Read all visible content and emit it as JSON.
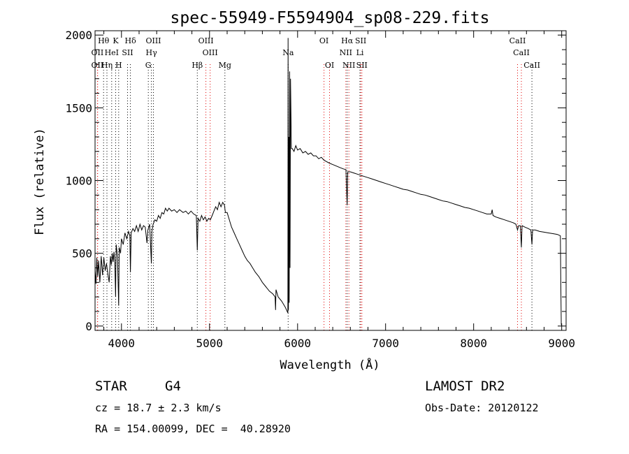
{
  "chart_data": {
    "type": "line",
    "title": "spec-55949-F5594904_sp08-229.fits",
    "xlabel": "Wavelength (Å)",
    "ylabel": "Flux (relative)",
    "xlim": [
      3700,
      9050
    ],
    "ylim": [
      -30,
      2030
    ],
    "x_ticks": [
      "4000",
      "5000",
      "6000",
      "7000",
      "8000",
      "9000"
    ],
    "y_ticks": [
      "0",
      "500",
      "1000",
      "1500",
      "2000"
    ],
    "grid": false,
    "series": [
      {
        "points": [
          [
            3700,
            380
          ],
          [
            3710,
            290
          ],
          [
            3720,
            470
          ],
          [
            3730,
            340
          ],
          [
            3740,
            450
          ],
          [
            3755,
            300
          ],
          [
            3770,
            480
          ],
          [
            3785,
            350
          ],
          [
            3800,
            470
          ],
          [
            3815,
            380
          ],
          [
            3830,
            430
          ],
          [
            3845,
            360
          ],
          [
            3860,
            300
          ],
          [
            3875,
            480
          ],
          [
            3885,
            420
          ],
          [
            3895,
            500
          ],
          [
            3905,
            440
          ],
          [
            3915,
            510
          ],
          [
            3925,
            440
          ],
          [
            3933,
            200
          ],
          [
            3940,
            560
          ],
          [
            3955,
            480
          ],
          [
            3968,
            140
          ],
          [
            3975,
            540
          ],
          [
            3990,
            500
          ],
          [
            4000,
            600
          ],
          [
            4020,
            560
          ],
          [
            4040,
            640
          ],
          [
            4060,
            600
          ],
          [
            4080,
            650
          ],
          [
            4095,
            620
          ],
          [
            4102,
            370
          ],
          [
            4110,
            640
          ],
          [
            4130,
            670
          ],
          [
            4150,
            650
          ],
          [
            4170,
            690
          ],
          [
            4190,
            650
          ],
          [
            4210,
            700
          ],
          [
            4230,
            660
          ],
          [
            4250,
            690
          ],
          [
            4270,
            680
          ],
          [
            4290,
            570
          ],
          [
            4300,
            660
          ],
          [
            4320,
            700
          ],
          [
            4340,
            430
          ],
          [
            4345,
            650
          ],
          [
            4360,
            700
          ],
          [
            4380,
            730
          ],
          [
            4400,
            720
          ],
          [
            4420,
            760
          ],
          [
            4440,
            740
          ],
          [
            4460,
            780
          ],
          [
            4480,
            770
          ],
          [
            4500,
            810
          ],
          [
            4520,
            790
          ],
          [
            4540,
            810
          ],
          [
            4570,
            790
          ],
          [
            4600,
            800
          ],
          [
            4630,
            780
          ],
          [
            4660,
            800
          ],
          [
            4700,
            780
          ],
          [
            4730,
            790
          ],
          [
            4760,
            770
          ],
          [
            4790,
            790
          ],
          [
            4820,
            770
          ],
          [
            4850,
            760
          ],
          [
            4861,
            520
          ],
          [
            4870,
            740
          ],
          [
            4890,
            720
          ],
          [
            4910,
            760
          ],
          [
            4930,
            730
          ],
          [
            4950,
            750
          ],
          [
            4970,
            720
          ],
          [
            4990,
            740
          ],
          [
            5010,
            730
          ],
          [
            5030,
            760
          ],
          [
            5050,
            790
          ],
          [
            5070,
            820
          ],
          [
            5090,
            800
          ],
          [
            5110,
            850
          ],
          [
            5130,
            820
          ],
          [
            5150,
            850
          ],
          [
            5170,
            830
          ],
          [
            5180,
            780
          ],
          [
            5200,
            780
          ],
          [
            5220,
            740
          ],
          [
            5250,
            680
          ],
          [
            5280,
            640
          ],
          [
            5310,
            600
          ],
          [
            5340,
            560
          ],
          [
            5370,
            520
          ],
          [
            5400,
            480
          ],
          [
            5430,
            450
          ],
          [
            5460,
            430
          ],
          [
            5490,
            400
          ],
          [
            5520,
            370
          ],
          [
            5560,
            340
          ],
          [
            5600,
            300
          ],
          [
            5640,
            270
          ],
          [
            5680,
            240
          ],
          [
            5720,
            220
          ],
          [
            5745,
            200
          ],
          [
            5750,
            110
          ],
          [
            5755,
            250
          ],
          [
            5780,
            200
          ],
          [
            5820,
            170
          ],
          [
            5860,
            130
          ],
          [
            5890,
            90
          ],
          [
            5892,
            1980
          ],
          [
            5896,
            110
          ],
          [
            5900,
            1300
          ],
          [
            5905,
            160
          ],
          [
            5910,
            1750
          ],
          [
            5915,
            400
          ],
          [
            5920,
            1700
          ],
          [
            5930,
            1220
          ],
          [
            5940,
            1220
          ],
          [
            5960,
            1200
          ],
          [
            5980,
            1240
          ],
          [
            6000,
            1210
          ],
          [
            6030,
            1220
          ],
          [
            6060,
            1190
          ],
          [
            6090,
            1200
          ],
          [
            6120,
            1180
          ],
          [
            6150,
            1190
          ],
          [
            6180,
            1170
          ],
          [
            6210,
            1170
          ],
          [
            6240,
            1150
          ],
          [
            6270,
            1160
          ],
          [
            6300,
            1140
          ],
          [
            6330,
            1130
          ],
          [
            6360,
            1120
          ],
          [
            6400,
            1110
          ],
          [
            6440,
            1100
          ],
          [
            6480,
            1090
          ],
          [
            6520,
            1080
          ],
          [
            6550,
            1075
          ],
          [
            6563,
            830
          ],
          [
            6570,
            1060
          ],
          [
            6600,
            1060
          ],
          [
            6650,
            1050
          ],
          [
            6700,
            1040
          ],
          [
            6750,
            1030
          ],
          [
            6800,
            1020
          ],
          [
            6850,
            1010
          ],
          [
            6900,
            1000
          ],
          [
            6950,
            990
          ],
          [
            7000,
            980
          ],
          [
            7050,
            970
          ],
          [
            7100,
            960
          ],
          [
            7150,
            950
          ],
          [
            7200,
            940
          ],
          [
            7250,
            935
          ],
          [
            7300,
            925
          ],
          [
            7350,
            915
          ],
          [
            7400,
            905
          ],
          [
            7450,
            900
          ],
          [
            7500,
            890
          ],
          [
            7550,
            880
          ],
          [
            7600,
            870
          ],
          [
            7650,
            860
          ],
          [
            7700,
            855
          ],
          [
            7750,
            845
          ],
          [
            7800,
            835
          ],
          [
            7850,
            825
          ],
          [
            7900,
            815
          ],
          [
            7950,
            810
          ],
          [
            8000,
            800
          ],
          [
            8050,
            790
          ],
          [
            8100,
            780
          ],
          [
            8150,
            770
          ],
          [
            8200,
            770
          ],
          [
            8210,
            800
          ],
          [
            8220,
            760
          ],
          [
            8250,
            750
          ],
          [
            8300,
            740
          ],
          [
            8350,
            730
          ],
          [
            8400,
            720
          ],
          [
            8450,
            710
          ],
          [
            8480,
            700
          ],
          [
            8498,
            660
          ],
          [
            8510,
            690
          ],
          [
            8530,
            690
          ],
          [
            8542,
            540
          ],
          [
            8550,
            690
          ],
          [
            8580,
            680
          ],
          [
            8620,
            670
          ],
          [
            8650,
            660
          ],
          [
            8662,
            560
          ],
          [
            8670,
            660
          ],
          [
            8700,
            660
          ],
          [
            8750,
            650
          ],
          [
            8800,
            645
          ],
          [
            8850,
            640
          ],
          [
            8900,
            635
          ],
          [
            8950,
            630
          ],
          [
            8985,
            620
          ],
          [
            8990,
            300
          ],
          [
            8995,
            10
          ],
          [
            9000,
            5
          ]
        ]
      }
    ],
    "line_labels": [
      {
        "text": "Hθ",
        "x": 3797,
        "row": 1
      },
      {
        "text": "K",
        "x": 3934,
        "row": 1
      },
      {
        "text": "Hδ",
        "x": 4102,
        "row": 1
      },
      {
        "text": "OIII",
        "x": 4363,
        "row": 1
      },
      {
        "text": "OIII",
        "x": 4959,
        "row": 1
      },
      {
        "text": "OI",
        "x": 6300,
        "row": 1
      },
      {
        "text": "Hα",
        "x": 6563,
        "row": 1
      },
      {
        "text": "SII",
        "x": 6717,
        "row": 1
      },
      {
        "text": "CaII",
        "x": 8498,
        "row": 1
      },
      {
        "text": "OII",
        "x": 3727,
        "row": 2
      },
      {
        "text": "HeI",
        "x": 3889,
        "row": 2
      },
      {
        "text": "SII",
        "x": 4069,
        "row": 2
      },
      {
        "text": "Hγ",
        "x": 4340,
        "row": 2
      },
      {
        "text": "OIII",
        "x": 5007,
        "row": 2
      },
      {
        "text": "Na",
        "x": 5893,
        "row": 2
      },
      {
        "text": "NII",
        "x": 6548,
        "row": 2
      },
      {
        "text": "Li",
        "x": 6708,
        "row": 2
      },
      {
        "text": "CaII",
        "x": 8542,
        "row": 2
      },
      {
        "text": "OII",
        "x": 3727,
        "row": 3
      },
      {
        "text": "Hη",
        "x": 3835,
        "row": 3
      },
      {
        "text": "H",
        "x": 3968,
        "row": 3
      },
      {
        "text": "G",
        "x": 4305,
        "row": 3
      },
      {
        "text": "Hβ",
        "x": 4861,
        "row": 3
      },
      {
        "text": "Mg",
        "x": 5175,
        "row": 3
      },
      {
        "text": "OI",
        "x": 6363,
        "row": 3
      },
      {
        "text": "NII",
        "x": 6583,
        "row": 3
      },
      {
        "text": "SII",
        "x": 6731,
        "row": 3
      },
      {
        "text": "CaII",
        "x": 8662,
        "row": 3
      }
    ],
    "red_lines": [
      3727,
      3729,
      4959,
      5007,
      6300,
      6363,
      6548,
      6583,
      6717,
      6731,
      8498,
      8542
    ],
    "black_lines": [
      3797,
      3835,
      3889,
      3934,
      3968,
      4069,
      4102,
      4305,
      4340,
      4363,
      4861,
      5175,
      5893,
      6563,
      6708,
      8662
    ]
  },
  "info": {
    "object_class": "STAR",
    "subclass": "G4",
    "survey": "LAMOST DR2",
    "redshift": "cz = 18.7 ± 2.3 km/s",
    "obs_date": "Obs-Date: 20120122",
    "coords": "RA = 154.00099, DEC =  40.28920"
  }
}
